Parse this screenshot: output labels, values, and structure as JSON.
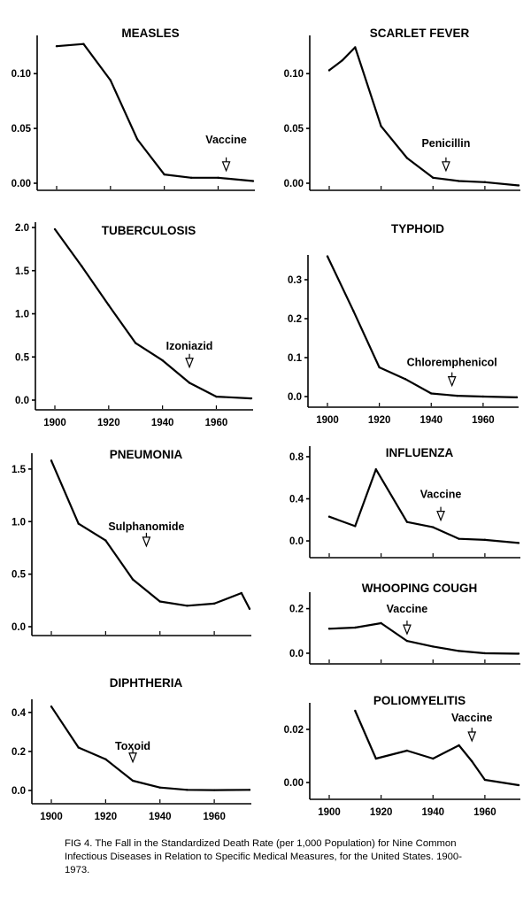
{
  "caption": "FIG 4. The Fall in the Standardized Death Rate (per 1,000 Population) for Nine Common Infectious Diseases in Relation to Specific Medical Measures, for the United States. 1900-1973.",
  "chart_data": [
    {
      "type": "line",
      "title": "MEASLES",
      "xlim": [
        1900,
        1973
      ],
      "ylim": [
        0,
        0.13
      ],
      "yticks": [
        {
          "v": 0,
          "label": "0.00"
        },
        {
          "v": 0.05,
          "label": "0.05"
        },
        {
          "v": 0.1,
          "label": "0.10"
        }
      ],
      "xticks": [],
      "series": [
        {
          "x": [
            1900,
            1910,
            1920,
            1930,
            1940,
            1950,
            1960,
            1973
          ],
          "y": [
            0.125,
            0.127,
            0.094,
            0.04,
            0.008,
            0.005,
            0.005,
            0.002
          ]
        }
      ],
      "annotation": {
        "label": "Vaccine",
        "x": 1963,
        "y": 0.005
      }
    },
    {
      "type": "line",
      "title": "SCARLET FEVER",
      "xlim": [
        1900,
        1973
      ],
      "ylim": [
        0,
        0.13
      ],
      "yticks": [
        {
          "v": 0,
          "label": "0.00"
        },
        {
          "v": 0.05,
          "label": "0.05"
        },
        {
          "v": 0.1,
          "label": "0.10"
        }
      ],
      "xticks": [],
      "series": [
        {
          "x": [
            1900,
            1905,
            1910,
            1920,
            1930,
            1940,
            1950,
            1960,
            1973
          ],
          "y": [
            0.103,
            0.112,
            0.124,
            0.052,
            0.023,
            0.005,
            0.002,
            0.001,
            -0.002
          ]
        }
      ],
      "annotation": {
        "label": "Penicillin",
        "x": 1945,
        "y": 0.005
      }
    },
    {
      "type": "line",
      "title": "TUBERCULOSIS",
      "xlim": [
        1900,
        1973
      ],
      "ylim": [
        0,
        2.0
      ],
      "yticks": [
        {
          "v": 0,
          "label": "0.0"
        },
        {
          "v": 0.5,
          "label": "0.5"
        },
        {
          "v": 1.0,
          "label": "1.0"
        },
        {
          "v": 1.5,
          "label": "1.5"
        },
        {
          "v": 2.0,
          "label": "2.0"
        }
      ],
      "xticks": [
        "1900",
        "1920",
        "1940",
        "1960"
      ],
      "series": [
        {
          "x": [
            1900,
            1910,
            1920,
            1930,
            1940,
            1950,
            1960,
            1973
          ],
          "y": [
            1.98,
            1.55,
            1.1,
            0.66,
            0.46,
            0.2,
            0.04,
            0.02
          ]
        }
      ],
      "annotation": {
        "label": "Izoniazid",
        "x": 1950,
        "y": 0.3
      }
    },
    {
      "type": "line",
      "title": "TYPHOID",
      "xlim": [
        1900,
        1973
      ],
      "ylim": [
        0,
        0.35
      ],
      "yticks": [
        {
          "v": 0,
          "label": "0.0"
        },
        {
          "v": 0.1,
          "label": "0.1"
        },
        {
          "v": 0.2,
          "label": "0.2"
        },
        {
          "v": 0.3,
          "label": "0.3"
        }
      ],
      "xticks": [
        "1900",
        "1920",
        "1940",
        "1960"
      ],
      "series": [
        {
          "x": [
            1900,
            1910,
            1920,
            1930,
            1940,
            1950,
            1960,
            1973
          ],
          "y": [
            0.36,
            0.22,
            0.075,
            0.045,
            0.008,
            0.002,
            0,
            -0.002
          ]
        }
      ],
      "annotation": {
        "label": "Chloremphenicol",
        "x": 1948,
        "y": 0.01
      }
    },
    {
      "type": "line",
      "title": "PNEUMONIA",
      "xlim": [
        1900,
        1973
      ],
      "ylim": [
        0,
        1.6
      ],
      "yticks": [
        {
          "v": 0,
          "label": "0.0"
        },
        {
          "v": 0.5,
          "label": "0.5"
        },
        {
          "v": 1.0,
          "label": "1.0"
        },
        {
          "v": 1.5,
          "label": "1.5"
        }
      ],
      "xticks": [],
      "series": [
        {
          "x": [
            1900,
            1910,
            1920,
            1930,
            1940,
            1950,
            1960,
            1970,
            1973
          ],
          "y": [
            1.58,
            0.98,
            0.82,
            0.45,
            0.24,
            0.2,
            0.22,
            0.32,
            0.17
          ]
        }
      ],
      "annotation": {
        "label": "Sulphanomide",
        "x": 1935,
        "y": 0.7
      }
    },
    {
      "type": "line",
      "title": "INFLUENZA",
      "xlim": [
        1900,
        1973
      ],
      "ylim": [
        -0.05,
        0.85
      ],
      "yticks": [
        {
          "v": 0,
          "label": "0.0"
        },
        {
          "v": 0.4,
          "label": "0.4"
        },
        {
          "v": 0.8,
          "label": "0.8"
        }
      ],
      "xticks": [],
      "series": [
        {
          "x": [
            1900,
            1910,
            1918,
            1930,
            1940,
            1950,
            1960,
            1973
          ],
          "y": [
            0.23,
            0.14,
            0.68,
            0.18,
            0.13,
            0.02,
            0.01,
            -0.02
          ]
        }
      ],
      "annotation": {
        "label": "Vaccine",
        "x": 1943,
        "y": 0.13
      }
    },
    {
      "type": "line",
      "title": "WHOOPING COUGH",
      "xlim": [
        1900,
        1973
      ],
      "ylim": [
        -0.02,
        0.25
      ],
      "yticks": [
        {
          "v": 0,
          "label": "0.0"
        },
        {
          "v": 0.2,
          "label": "0.2"
        }
      ],
      "xticks": [],
      "series": [
        {
          "x": [
            1900,
            1910,
            1920,
            1930,
            1940,
            1950,
            1960,
            1973
          ],
          "y": [
            0.11,
            0.115,
            0.135,
            0.055,
            0.03,
            0.01,
            0,
            -0.002
          ]
        }
      ],
      "annotation": {
        "label": "Vaccine",
        "x": 1930,
        "y": 0.055
      }
    },
    {
      "type": "line",
      "title": "DIPHTHERIA",
      "xlim": [
        1900,
        1973
      ],
      "ylim": [
        0,
        0.44
      ],
      "yticks": [
        {
          "v": 0,
          "label": "0.0"
        },
        {
          "v": 0.2,
          "label": "0.2"
        },
        {
          "v": 0.4,
          "label": "0.4"
        }
      ],
      "xticks": [
        "1900",
        "1920",
        "1940",
        "1960"
      ],
      "series": [
        {
          "x": [
            1900,
            1910,
            1920,
            1930,
            1940,
            1950,
            1960,
            1973
          ],
          "y": [
            0.43,
            0.22,
            0.16,
            0.05,
            0.015,
            0.003,
            0.002,
            0.003
          ]
        }
      ],
      "annotation": {
        "label": "Toxoid",
        "x": 1930,
        "y": 0.11
      }
    },
    {
      "type": "line",
      "title": "POLIOMYELITIS",
      "xlim": [
        1900,
        1973
      ],
      "ylim": [
        -0.002,
        0.028
      ],
      "yticks": [
        {
          "v": 0,
          "label": "0.00"
        },
        {
          "v": 0.02,
          "label": "0.02"
        }
      ],
      "xticks": [
        "1900",
        "1920",
        "1940",
        "1960"
      ],
      "series": [
        {
          "x": [
            1910,
            1918,
            1930,
            1940,
            1950,
            1955,
            1960,
            1973
          ],
          "y": [
            0.027,
            0.009,
            0.012,
            0.009,
            0.014,
            0.008,
            0.001,
            -0.001
          ]
        }
      ],
      "annotation": {
        "label": "Vaccine",
        "x": 1955,
        "y": 0.013
      }
    }
  ]
}
